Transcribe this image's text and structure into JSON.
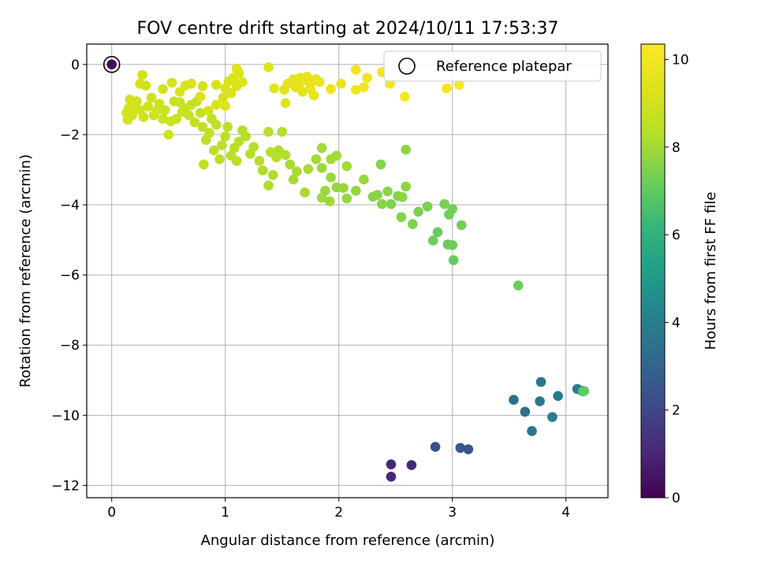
{
  "chart_data": {
    "type": "scatter",
    "title": "FOV centre drift starting at 2024/10/11 17:53:37",
    "xlabel": "Angular distance from reference (arcmin)",
    "ylabel": "Rotation from reference (arcmin)",
    "xlim": [
      -0.22,
      4.37
    ],
    "ylim": [
      -12.35,
      0.58
    ],
    "xticks": [
      0,
      1,
      2,
      3,
      4
    ],
    "yticks": [
      0,
      -2,
      -4,
      -6,
      -8,
      -10,
      -12
    ],
    "grid": true,
    "colormap": "viridis",
    "colorbar": {
      "label": "Hours from first FF file",
      "range": [
        0,
        10.35
      ],
      "ticks": [
        0,
        2,
        4,
        6,
        8,
        10
      ]
    },
    "legend": {
      "position": "top-right",
      "entries": [
        "Reference platepar"
      ]
    },
    "reference_marker": {
      "x": 0.0,
      "y": 0.0,
      "hours": 0.3
    },
    "series": [
      {
        "points": [
          [
            2.46,
            -11.75,
            1.0
          ],
          [
            2.46,
            -11.4,
            1.0
          ],
          [
            2.64,
            -11.42,
            1.1
          ],
          [
            2.85,
            -10.9,
            2.3
          ],
          [
            3.07,
            -10.93,
            2.5
          ],
          [
            3.14,
            -10.97,
            2.4
          ],
          [
            3.54,
            -9.56,
            3.4
          ],
          [
            3.64,
            -9.9,
            3.5
          ],
          [
            3.7,
            -10.45,
            3.6
          ],
          [
            3.77,
            -9.6,
            3.7
          ],
          [
            3.78,
            -9.05,
            3.8
          ],
          [
            3.88,
            -10.05,
            3.9
          ],
          [
            3.93,
            -9.45,
            3.8
          ],
          [
            4.1,
            -9.25,
            3.9
          ],
          [
            4.14,
            -9.3,
            4.1
          ],
          [
            4.15,
            -9.32,
            6.6
          ],
          [
            4.16,
            -9.31,
            7.0
          ],
          [
            3.58,
            -6.3,
            7.2
          ],
          [
            3.01,
            -5.58,
            7.1
          ],
          [
            2.96,
            -5.13,
            7.1
          ],
          [
            2.87,
            -4.78,
            7.1
          ],
          [
            2.83,
            -5.02,
            7.2
          ],
          [
            3.0,
            -5.15,
            7.2
          ],
          [
            3.08,
            -4.58,
            7.3
          ],
          [
            2.97,
            -4.28,
            7.3
          ],
          [
            3.0,
            -4.12,
            7.3
          ],
          [
            2.93,
            -3.98,
            7.4
          ],
          [
            2.78,
            -4.05,
            7.4
          ],
          [
            2.7,
            -4.2,
            7.4
          ],
          [
            2.65,
            -4.55,
            7.5
          ],
          [
            2.55,
            -4.35,
            7.5
          ],
          [
            2.46,
            -3.98,
            7.5
          ],
          [
            2.52,
            -3.75,
            7.5
          ],
          [
            2.38,
            -3.98,
            7.6
          ],
          [
            2.34,
            -3.72,
            7.6
          ],
          [
            2.3,
            -3.77,
            7.6
          ],
          [
            2.37,
            -2.85,
            7.6
          ],
          [
            2.59,
            -2.43,
            7.7
          ],
          [
            2.59,
            -3.48,
            7.7
          ],
          [
            2.56,
            -3.78,
            7.7
          ],
          [
            2.43,
            -3.62,
            7.7
          ],
          [
            2.22,
            -3.28,
            7.8
          ],
          [
            2.15,
            -3.6,
            7.8
          ],
          [
            2.07,
            -3.82,
            7.8
          ],
          [
            2.04,
            -3.52,
            7.8
          ],
          [
            1.98,
            -3.5,
            7.8
          ],
          [
            1.93,
            -3.22,
            7.9
          ],
          [
            1.92,
            -3.9,
            7.9
          ],
          [
            1.88,
            -3.6,
            7.9
          ],
          [
            1.85,
            -2.95,
            7.9
          ],
          [
            1.85,
            -3.8,
            7.9
          ],
          [
            2.07,
            -2.9,
            8.0
          ],
          [
            1.98,
            -2.6,
            8.0
          ],
          [
            1.93,
            -2.7,
            8.0
          ],
          [
            1.85,
            -2.38,
            8.0
          ],
          [
            1.8,
            -2.7,
            8.0
          ],
          [
            1.73,
            -2.98,
            8.1
          ],
          [
            1.7,
            -3.65,
            8.1
          ],
          [
            1.63,
            -3.05,
            8.1
          ],
          [
            1.6,
            -3.28,
            8.1
          ],
          [
            1.57,
            -2.85,
            8.1
          ],
          [
            1.53,
            -2.58,
            8.2
          ],
          [
            1.47,
            -2.45,
            8.2
          ],
          [
            1.42,
            -3.15,
            8.2
          ],
          [
            1.38,
            -3.45,
            8.2
          ],
          [
            1.33,
            -3.02,
            8.2
          ],
          [
            1.3,
            -2.75,
            8.3
          ],
          [
            1.25,
            -2.35,
            8.3
          ],
          [
            1.22,
            -2.55,
            8.3
          ],
          [
            1.18,
            -2.05,
            8.3
          ],
          [
            1.15,
            -1.88,
            8.3
          ],
          [
            1.38,
            -1.92,
            8.3
          ],
          [
            1.5,
            -1.92,
            8.3
          ],
          [
            1.4,
            -2.5,
            8.4
          ],
          [
            1.45,
            -2.65,
            8.4
          ],
          [
            1.12,
            -2.2,
            8.4
          ],
          [
            1.1,
            -2.75,
            8.4
          ],
          [
            1.08,
            -2.38,
            8.4
          ],
          [
            1.05,
            -2.6,
            8.4
          ],
          [
            1.02,
            -1.78,
            8.4
          ],
          [
            1.0,
            -2.05,
            8.5
          ],
          [
            0.97,
            -2.3,
            8.5
          ],
          [
            0.95,
            -2.7,
            8.5
          ],
          [
            0.92,
            -1.72,
            8.5
          ],
          [
            0.9,
            -2.45,
            8.5
          ],
          [
            0.88,
            -1.55,
            8.6
          ],
          [
            0.86,
            -1.95,
            8.6
          ],
          [
            0.83,
            -2.15,
            8.6
          ],
          [
            0.81,
            -2.85,
            8.6
          ],
          [
            0.8,
            -1.78,
            8.6
          ],
          [
            0.78,
            -1.38,
            8.7
          ],
          [
            0.75,
            -1.05,
            8.7
          ],
          [
            0.73,
            -1.65,
            8.7
          ],
          [
            0.7,
            -1.15,
            8.7
          ],
          [
            0.68,
            -1.45,
            8.7
          ],
          [
            0.65,
            -1.25,
            8.8
          ],
          [
            0.62,
            -1.35,
            8.8
          ],
          [
            0.6,
            -1.08,
            8.8
          ],
          [
            0.57,
            -1.55,
            8.8
          ],
          [
            0.55,
            -1.05,
            8.8
          ],
          [
            0.52,
            -1.62,
            8.9
          ],
          [
            0.5,
            -2.0,
            8.9
          ],
          [
            0.47,
            -1.3,
            8.9
          ],
          [
            0.45,
            -1.55,
            8.9
          ],
          [
            0.42,
            -1.12,
            8.9
          ],
          [
            0.4,
            -1.3,
            9.0
          ],
          [
            0.37,
            -1.45,
            9.0
          ],
          [
            0.35,
            -0.95,
            9.0
          ],
          [
            0.32,
            -1.2,
            9.0
          ],
          [
            0.3,
            -0.6,
            9.0
          ],
          [
            0.28,
            -1.5,
            9.0
          ],
          [
            0.25,
            -1.3,
            9.0
          ],
          [
            0.22,
            -1.05,
            9.0
          ],
          [
            0.2,
            -1.25,
            9.1
          ],
          [
            0.18,
            -1.45,
            9.1
          ],
          [
            0.16,
            -1.0,
            9.1
          ],
          [
            0.15,
            -1.25,
            9.1
          ],
          [
            0.14,
            -1.58,
            9.1
          ],
          [
            0.13,
            -1.38,
            9.1
          ],
          [
            0.45,
            -0.7,
            9.1
          ],
          [
            0.27,
            -0.3,
            9.1
          ],
          [
            0.25,
            -0.55,
            9.1
          ],
          [
            0.53,
            -0.52,
            9.2
          ],
          [
            0.6,
            -0.78,
            9.2
          ],
          [
            0.65,
            -0.6,
            9.2
          ],
          [
            0.7,
            -0.55,
            9.2
          ],
          [
            0.8,
            -0.62,
            9.2
          ],
          [
            0.92,
            -0.58,
            9.2
          ],
          [
            0.98,
            -0.95,
            9.2
          ],
          [
            1.0,
            -1.18,
            9.3
          ],
          [
            1.03,
            -0.48,
            9.3
          ],
          [
            1.07,
            -0.38,
            9.3
          ],
          [
            1.1,
            -0.62,
            9.3
          ],
          [
            1.12,
            -0.25,
            9.3
          ],
          [
            1.15,
            -0.5,
            9.3
          ],
          [
            1.0,
            -0.68,
            9.3
          ],
          [
            1.05,
            -0.82,
            9.3
          ],
          [
            0.92,
            -1.15,
            9.3
          ],
          [
            0.85,
            -1.32,
            9.2
          ],
          [
            0.78,
            -0.92,
            9.2
          ],
          [
            1.1,
            -0.12,
            9.4
          ],
          [
            1.38,
            -0.08,
            9.4
          ],
          [
            1.43,
            -0.68,
            9.5
          ],
          [
            1.52,
            -0.72,
            9.5
          ],
          [
            1.53,
            -1.1,
            9.5
          ],
          [
            1.55,
            -0.55,
            9.6
          ],
          [
            1.6,
            -0.42,
            9.6
          ],
          [
            1.65,
            -0.55,
            9.6
          ],
          [
            1.68,
            -0.78,
            9.6
          ],
          [
            1.7,
            -0.45,
            9.7
          ],
          [
            1.72,
            -0.35,
            9.7
          ],
          [
            1.75,
            -0.55,
            9.7
          ],
          [
            1.78,
            -0.88,
            9.7
          ],
          [
            1.8,
            -0.42,
            9.7
          ],
          [
            1.83,
            -0.5,
            9.8
          ],
          [
            1.93,
            -0.7,
            9.8
          ],
          [
            2.02,
            -0.55,
            9.8
          ],
          [
            2.15,
            -0.72,
            9.9
          ],
          [
            2.22,
            -0.65,
            9.9
          ],
          [
            2.25,
            -0.38,
            9.9
          ],
          [
            2.15,
            -0.15,
            9.9
          ],
          [
            2.38,
            -0.22,
            10.0
          ],
          [
            2.45,
            -0.55,
            10.0
          ],
          [
            2.58,
            -0.92,
            10.1
          ],
          [
            2.95,
            -0.68,
            10.1
          ],
          [
            3.06,
            -0.58,
            10.2
          ],
          [
            1.62,
            -0.65,
            9.6
          ],
          [
            1.75,
            -0.7,
            9.7
          ],
          [
            1.66,
            -0.38,
            9.6
          ]
        ]
      }
    ]
  }
}
